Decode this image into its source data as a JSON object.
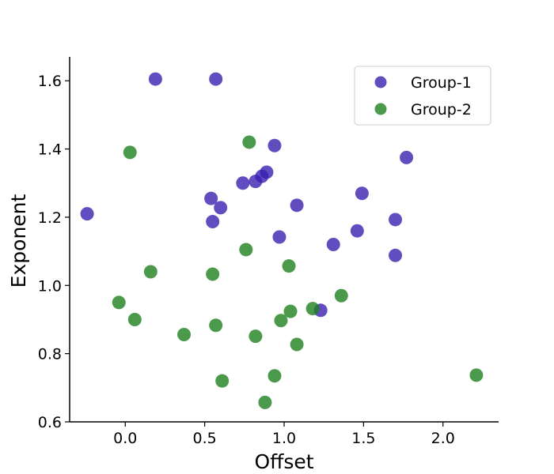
{
  "chart_data": {
    "type": "scatter",
    "title": "",
    "xlabel": "Offset",
    "ylabel": "Exponent",
    "xlim": [
      -0.35,
      2.35
    ],
    "ylim": [
      0.6,
      1.67
    ],
    "xticks": [
      0.0,
      0.5,
      1.0,
      1.5,
      2.0
    ],
    "xtick_labels": [
      "0.0",
      "0.5",
      "1.0",
      "1.5",
      "2.0"
    ],
    "yticks": [
      0.6,
      0.8,
      1.0,
      1.2,
      1.4,
      1.6
    ],
    "ytick_labels": [
      "0.6",
      "0.8",
      "1.0",
      "1.2",
      "1.4",
      "1.6"
    ],
    "grid": false,
    "legend_position": "top-right",
    "series": [
      {
        "name": "Group-1",
        "color": "#3a1fb0",
        "points": [
          {
            "x": 0.19,
            "y": 1.605
          },
          {
            "x": 0.57,
            "y": 1.605
          },
          {
            "x": -0.24,
            "y": 1.21
          },
          {
            "x": 0.94,
            "y": 1.41
          },
          {
            "x": 1.77,
            "y": 1.375
          },
          {
            "x": 0.89,
            "y": 1.332
          },
          {
            "x": 0.86,
            "y": 1.32
          },
          {
            "x": 0.82,
            "y": 1.305
          },
          {
            "x": 0.74,
            "y": 1.3
          },
          {
            "x": 0.54,
            "y": 1.255
          },
          {
            "x": 0.6,
            "y": 1.228
          },
          {
            "x": 0.55,
            "y": 1.187
          },
          {
            "x": 1.08,
            "y": 1.235
          },
          {
            "x": 1.49,
            "y": 1.27
          },
          {
            "x": 1.7,
            "y": 1.193
          },
          {
            "x": 0.97,
            "y": 1.142
          },
          {
            "x": 1.46,
            "y": 1.16
          },
          {
            "x": 1.31,
            "y": 1.12
          },
          {
            "x": 1.7,
            "y": 1.088
          },
          {
            "x": 1.23,
            "y": 0.927
          }
        ]
      },
      {
        "name": "Group-2",
        "color": "#1e7f1e",
        "points": [
          {
            "x": 0.03,
            "y": 1.39
          },
          {
            "x": 0.78,
            "y": 1.42
          },
          {
            "x": 0.76,
            "y": 1.105
          },
          {
            "x": 1.03,
            "y": 1.057
          },
          {
            "x": 0.16,
            "y": 1.04
          },
          {
            "x": 0.55,
            "y": 1.033
          },
          {
            "x": -0.04,
            "y": 0.95
          },
          {
            "x": 1.36,
            "y": 0.97
          },
          {
            "x": 1.18,
            "y": 0.932
          },
          {
            "x": 1.04,
            "y": 0.924
          },
          {
            "x": 0.06,
            "y": 0.9
          },
          {
            "x": 0.98,
            "y": 0.897
          },
          {
            "x": 0.57,
            "y": 0.883
          },
          {
            "x": 0.37,
            "y": 0.856
          },
          {
            "x": 0.82,
            "y": 0.851
          },
          {
            "x": 1.08,
            "y": 0.827
          },
          {
            "x": 0.94,
            "y": 0.735
          },
          {
            "x": 0.61,
            "y": 0.72
          },
          {
            "x": 0.88,
            "y": 0.657
          },
          {
            "x": 2.21,
            "y": 0.737
          }
        ]
      }
    ]
  }
}
